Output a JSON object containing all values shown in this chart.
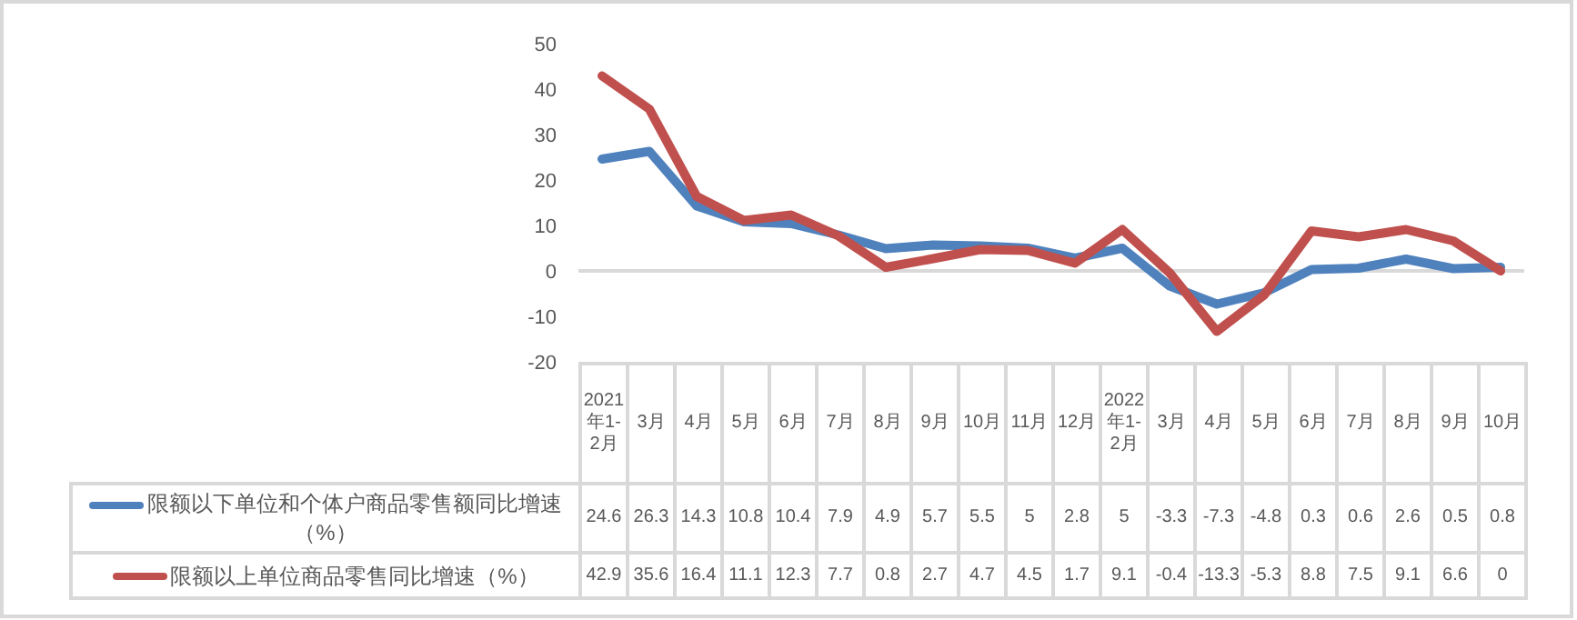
{
  "chart_data": {
    "type": "line",
    "categories": [
      "2021年1-2月",
      "3月",
      "4月",
      "5月",
      "6月",
      "7月",
      "8月",
      "9月",
      "10月",
      "11月",
      "12月",
      "2022年1-2月",
      "3月",
      "4月",
      "5月",
      "6月",
      "7月",
      "8月",
      "9月",
      "10月"
    ],
    "series": [
      {
        "name": "限额以下单位和个体户商品零售额同比增速（%）",
        "color": "#4f81bd",
        "values": [
          24.6,
          26.3,
          14.3,
          10.8,
          10.4,
          7.9,
          4.9,
          5.7,
          5.5,
          5,
          2.8,
          5,
          -3.3,
          -7.3,
          -4.8,
          0.3,
          0.6,
          2.6,
          0.5,
          0.8
        ]
      },
      {
        "name": "限额以上单位商品零售同比增速（%）",
        "color": "#c0504d",
        "values": [
          42.9,
          35.6,
          16.4,
          11.1,
          12.3,
          7.7,
          0.8,
          2.7,
          4.7,
          4.5,
          1.7,
          9.1,
          -0.4,
          -13.3,
          -5.3,
          8.8,
          7.5,
          9.1,
          6.6,
          0
        ]
      }
    ],
    "ylim": [
      -20,
      50
    ],
    "yticks": [
      -20,
      -10,
      0,
      10,
      20,
      30,
      40,
      50
    ],
    "legend": "bottom",
    "data_labels": true,
    "marker": "none",
    "line_style": "solid"
  }
}
